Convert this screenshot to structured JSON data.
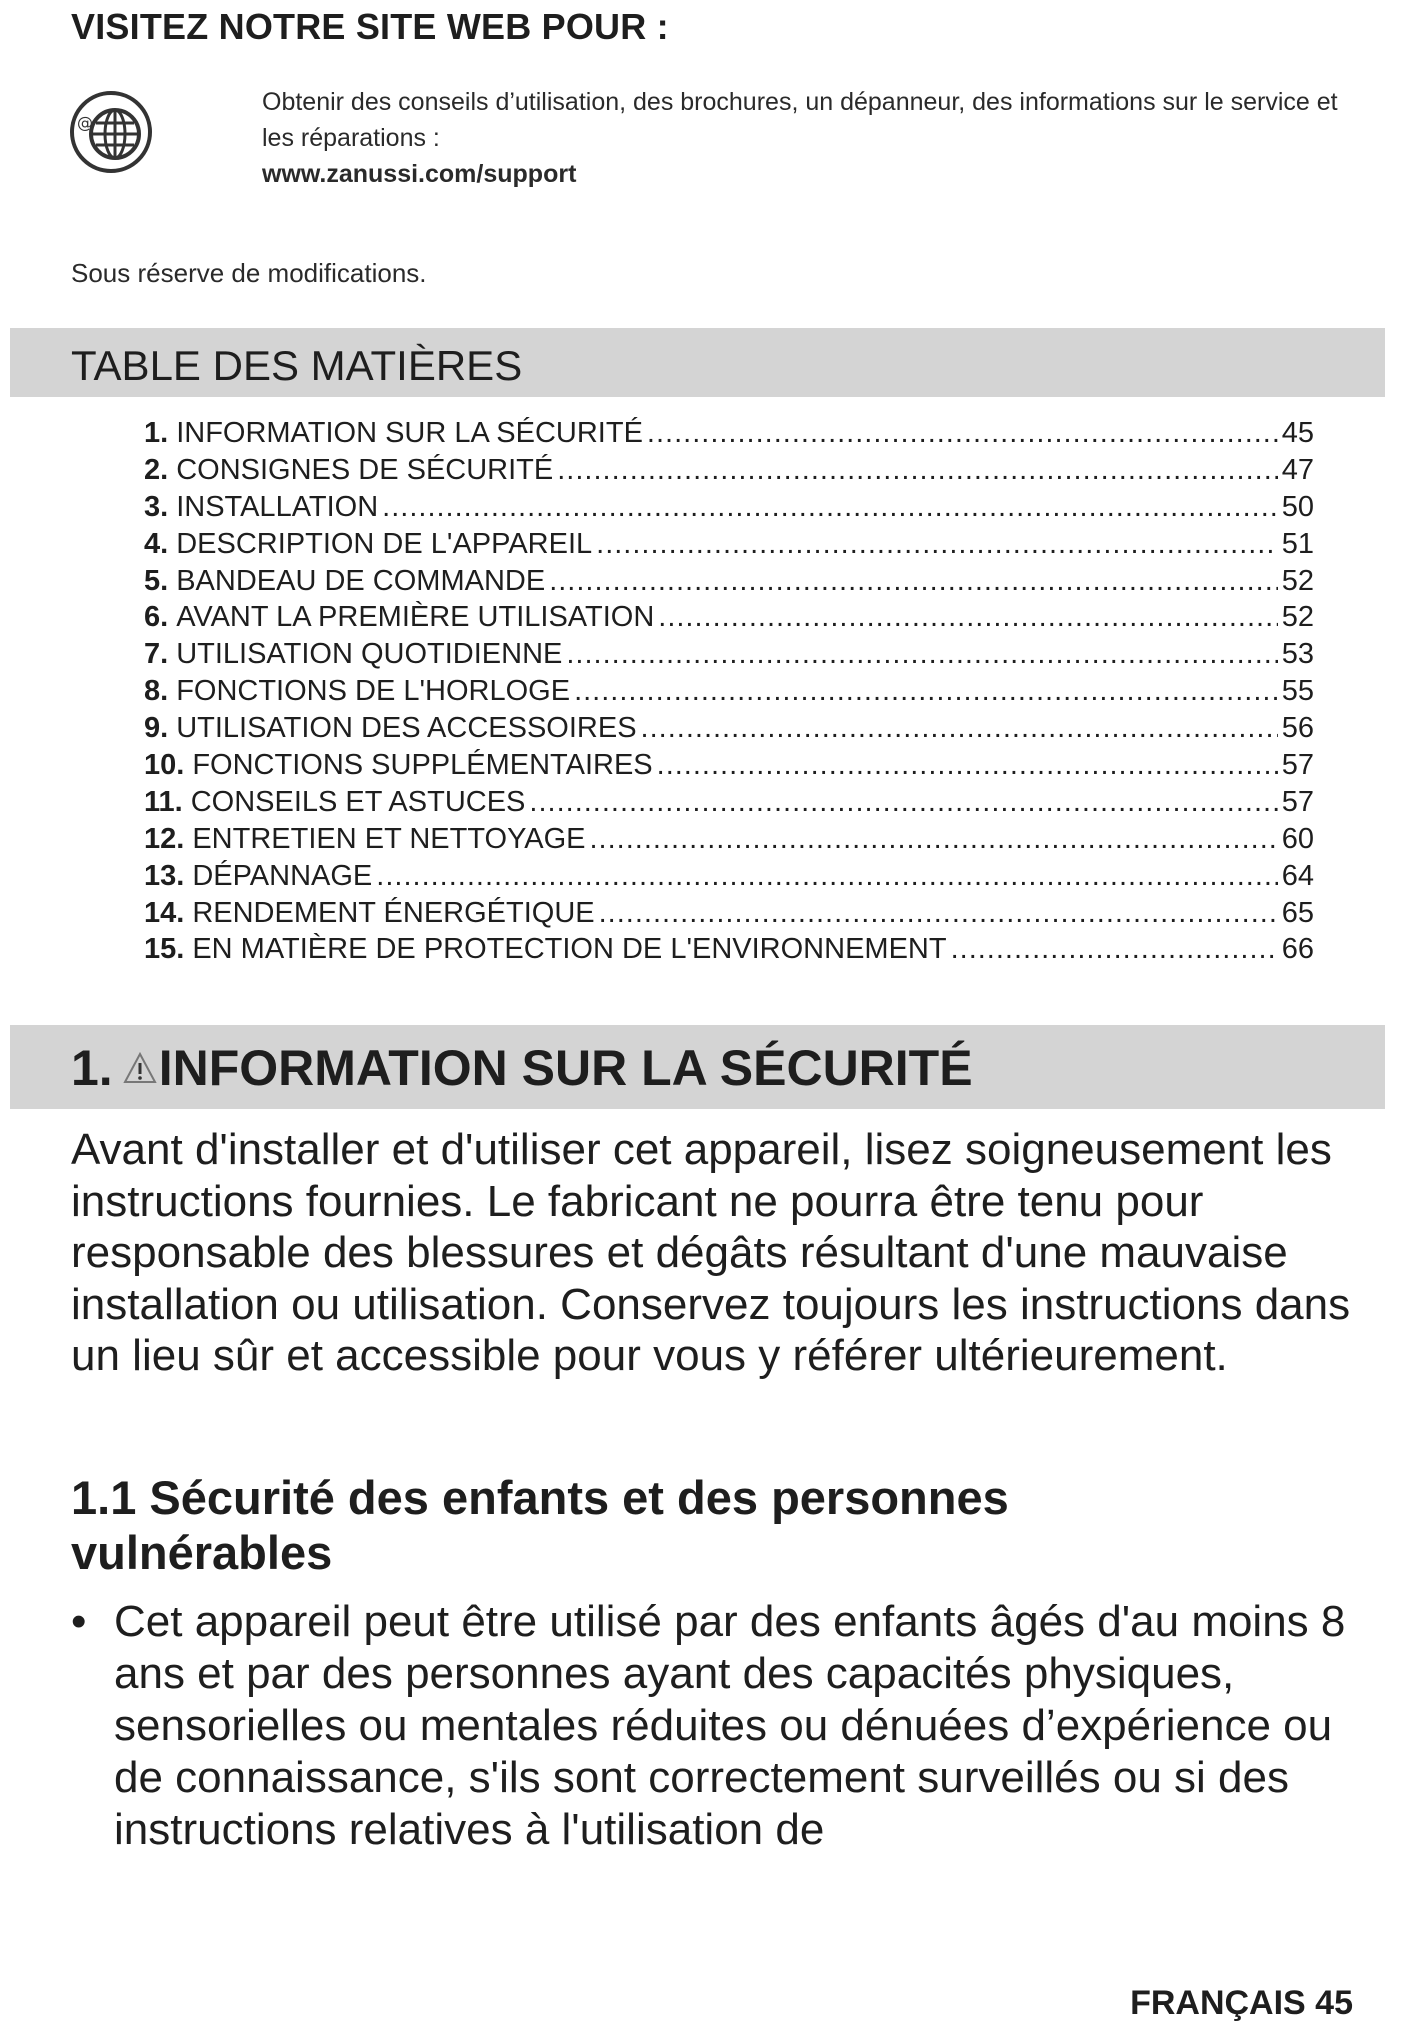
{
  "visit": {
    "title": "VISITEZ NOTRE SITE WEB POUR :",
    "icon": "globe-at-icon",
    "text": "Obtenir des conseils d’utilisation, des brochures, un dépanneur, des informations sur le service et les réparations :",
    "url": "www.zanussi.com/support"
  },
  "notice": "Sous réserve de modifications.",
  "toc": {
    "title": "TABLE DES MATIÈRES",
    "items": [
      {
        "num": "1.",
        "label": "INFORMATION SUR LA SÉCURITÉ",
        "page": "45"
      },
      {
        "num": "2.",
        "label": "CONSIGNES DE SÉCURITÉ",
        "page": "47"
      },
      {
        "num": "3.",
        "label": "INSTALLATION",
        "page": "50"
      },
      {
        "num": "4.",
        "label": "DESCRIPTION DE L'APPAREIL",
        "page": "51"
      },
      {
        "num": "5.",
        "label": "BANDEAU DE COMMANDE",
        "page": "52"
      },
      {
        "num": "6.",
        "label": "AVANT LA PREMIÈRE UTILISATION",
        "page": "52"
      },
      {
        "num": "7.",
        "label": "UTILISATION QUOTIDIENNE",
        "page": "53"
      },
      {
        "num": "8.",
        "label": "FONCTIONS DE L'HORLOGE",
        "page": "55"
      },
      {
        "num": "9.",
        "label": "UTILISATION DES ACCESSOIRES",
        "page": "56"
      },
      {
        "num": "10.",
        "label": "FONCTIONS SUPPLÉMENTAIRES",
        "page": "57"
      },
      {
        "num": "11.",
        "label": "CONSEILS ET ASTUCES",
        "page": "57"
      },
      {
        "num": "12.",
        "label": "ENTRETIEN ET NETTOYAGE",
        "page": "60"
      },
      {
        "num": "13.",
        "label": "DÉPANNAGE",
        "page": "64"
      },
      {
        "num": "14.",
        "label": "RENDEMENT ÉNERGÉTIQUE",
        "page": "65"
      },
      {
        "num": "15.",
        "label": "EN MATIÈRE DE PROTECTION DE L'ENVIRONNEMENT",
        "page": "66"
      }
    ]
  },
  "section": {
    "num": "1.",
    "icon": "warning-triangle-icon",
    "title": "INFORMATION SUR LA SÉCURITÉ",
    "intro": "Avant d'installer et d'utiliser cet appareil, lisez soigneusement les instructions fournies. Le fabricant ne pourra être tenu pour responsable des blessures et dégâts résultant d'une mauvaise installation ou utilisation. Conservez toujours les instructions dans un lieu sûr et accessible pour vous y référer ultérieurement.",
    "subsection_title": "1.1 Sécurité des enfants et des personnes vulnérables",
    "bullet": "Cet appareil peut être utilisé par des enfants âgés d'au moins 8 ans et par des personnes ayant des capacités physiques, sensorielles ou mentales réduites ou dénuées d’expérience ou de connaissance, s'ils sont correctement surveillés ou si des instructions relatives à l'utilisation de"
  },
  "footer": "FRANÇAIS 45"
}
